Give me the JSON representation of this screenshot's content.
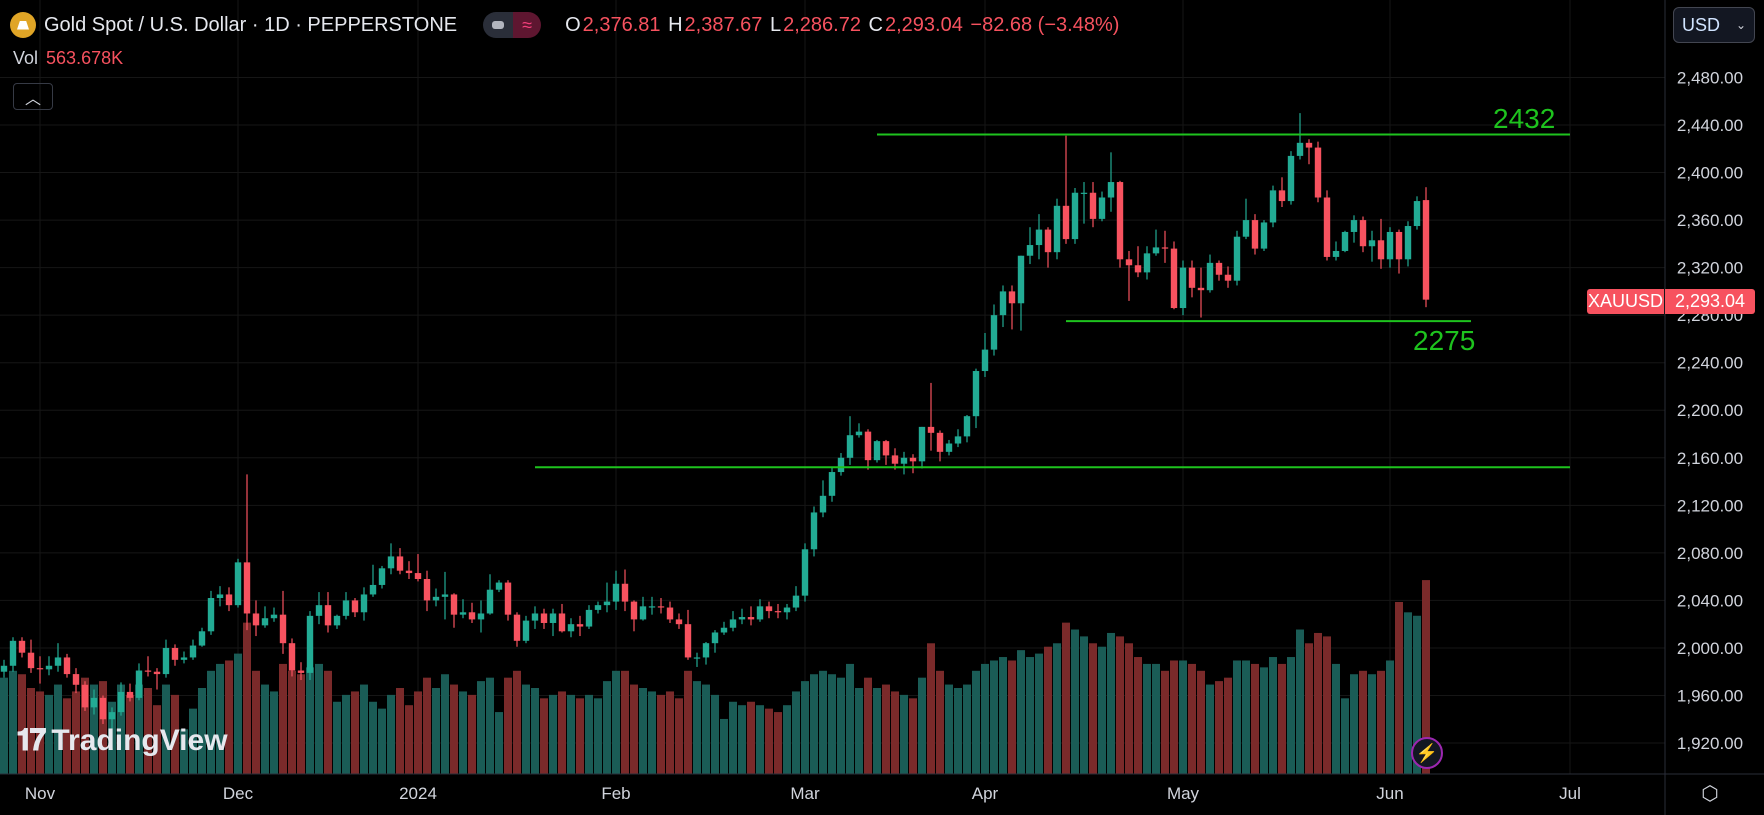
{
  "header": {
    "title": "Gold Spot / U.S. Dollar · 1D · PEPPERSTONE",
    "o_label": "O",
    "open": "2,376.81",
    "h_label": "H",
    "high": "2,387.67",
    "l_label": "L",
    "low": "2,286.72",
    "c_label": "C",
    "close": "2,293.04",
    "change": "−82.68 (−3.48%)",
    "vol_label": "Vol",
    "vol_value": "563.678K",
    "collapse_icon": "chevron-up-icon"
  },
  "currency": {
    "label": "USD"
  },
  "last_price": {
    "symbol": "XAUUSD",
    "price": "2,293.04"
  },
  "branding": {
    "name": "TradingView",
    "mark": "17"
  },
  "colors": {
    "up": "#22ab94",
    "down": "#f7525f",
    "vol_up": "#1a5c56",
    "vol_down": "#7a2a2a",
    "level": "#1ec31e",
    "background": "#000000"
  },
  "chart_data": {
    "type": "candlestick",
    "symbol": "XAUUSD",
    "interval": "1D",
    "ylim": [
      1900,
      2500
    ],
    "y_ticks": [
      "2,480.00",
      "2,440.00",
      "2,400.00",
      "2,360.00",
      "2,320.00",
      "2,280.00",
      "2,240.00",
      "2,200.00",
      "2,160.00",
      "2,120.00",
      "2,080.00",
      "2,040.00",
      "2,000.00",
      "1,960.00",
      "1,920.00"
    ],
    "x_ticks": [
      {
        "label": "Nov",
        "date": "2023-11-01"
      },
      {
        "label": "Dec",
        "date": "2023-12-01"
      },
      {
        "label": "2024",
        "date": "2024-01-02"
      },
      {
        "label": "Feb",
        "date": "2024-02-01"
      },
      {
        "label": "Mar",
        "date": "2024-03-01"
      },
      {
        "label": "Apr",
        "date": "2024-04-01"
      },
      {
        "label": "May",
        "date": "2024-05-01"
      },
      {
        "label": "Jun",
        "date": "2024-06-03"
      },
      {
        "label": "Jul",
        "date": "2024-07-01"
      }
    ],
    "grid": true,
    "horizontal_levels": [
      {
        "price": 2432,
        "label": "2432",
        "from": "2024-03-13",
        "to": "2024-07-01"
      },
      {
        "price": 2275,
        "label": "2275",
        "from": "2024-04-12",
        "to": "2024-06-14"
      },
      {
        "price": 2152,
        "label": "",
        "from": "2024-01-19",
        "to": "2024-07-01"
      }
    ],
    "columns": [
      "open",
      "high",
      "low",
      "close",
      "volume_k"
    ],
    "dates": [
      "2023-10-26",
      "2023-10-27",
      "2023-10-30",
      "2023-10-31",
      "2023-11-01",
      "2023-11-02",
      "2023-11-03",
      "2023-11-06",
      "2023-11-07",
      "2023-11-08",
      "2023-11-09",
      "2023-11-10",
      "2023-11-13",
      "2023-11-14",
      "2023-11-15",
      "2023-11-16",
      "2023-11-17",
      "2023-11-20",
      "2023-11-21",
      "2023-11-22",
      "2023-11-23",
      "2023-11-24",
      "2023-11-27",
      "2023-11-28",
      "2023-11-29",
      "2023-11-30",
      "2023-12-01",
      "2023-12-04",
      "2023-12-05",
      "2023-12-06",
      "2023-12-07",
      "2023-12-08",
      "2023-12-11",
      "2023-12-12",
      "2023-12-13",
      "2023-12-14",
      "2023-12-15",
      "2023-12-18",
      "2023-12-19",
      "2023-12-20",
      "2023-12-21",
      "2023-12-22",
      "2023-12-26",
      "2023-12-27",
      "2023-12-28",
      "2023-12-29",
      "2024-01-02",
      "2024-01-03",
      "2024-01-04",
      "2024-01-05",
      "2024-01-08",
      "2024-01-09",
      "2024-01-10",
      "2024-01-11",
      "2024-01-12",
      "2024-01-15",
      "2024-01-16",
      "2024-01-17",
      "2024-01-18",
      "2024-01-19",
      "2024-01-22",
      "2024-01-23",
      "2024-01-24",
      "2024-01-25",
      "2024-01-26",
      "2024-01-29",
      "2024-01-30",
      "2024-01-31",
      "2024-02-01",
      "2024-02-02",
      "2024-02-05",
      "2024-02-06",
      "2024-02-07",
      "2024-02-08",
      "2024-02-09",
      "2024-02-12",
      "2024-02-13",
      "2024-02-14",
      "2024-02-15",
      "2024-02-16",
      "2024-02-19",
      "2024-02-20",
      "2024-02-21",
      "2024-02-22",
      "2024-02-23",
      "2024-02-26",
      "2024-02-27",
      "2024-02-28",
      "2024-02-29",
      "2024-03-01",
      "2024-03-04",
      "2024-03-05",
      "2024-03-06",
      "2024-03-07",
      "2024-03-08",
      "2024-03-11",
      "2024-03-12",
      "2024-03-13",
      "2024-03-14",
      "2024-03-15",
      "2024-03-18",
      "2024-03-19",
      "2024-03-20",
      "2024-03-21",
      "2024-03-22",
      "2024-03-25",
      "2024-03-26",
      "2024-03-27",
      "2024-03-28",
      "2024-04-01",
      "2024-04-02",
      "2024-04-03",
      "2024-04-04",
      "2024-04-05",
      "2024-04-08",
      "2024-04-09",
      "2024-04-10",
      "2024-04-11",
      "2024-04-12",
      "2024-04-15",
      "2024-04-16",
      "2024-04-17",
      "2024-04-18",
      "2024-04-19",
      "2024-04-22",
      "2024-04-23",
      "2024-04-24",
      "2024-04-25",
      "2024-04-26",
      "2024-04-29",
      "2024-04-30",
      "2024-05-01",
      "2024-05-02",
      "2024-05-03",
      "2024-05-06",
      "2024-05-07",
      "2024-05-08",
      "2024-05-09",
      "2024-05-10",
      "2024-05-13",
      "2024-05-14",
      "2024-05-15",
      "2024-05-16",
      "2024-05-17",
      "2024-05-20",
      "2024-05-21",
      "2024-05-22",
      "2024-05-23",
      "2024-05-24",
      "2024-05-27",
      "2024-05-28",
      "2024-05-29",
      "2024-05-30",
      "2024-05-31",
      "2024-06-03",
      "2024-06-04",
      "2024-06-05",
      "2024-06-06",
      "2024-06-07"
    ],
    "bars": [
      [
        1980,
        1990,
        1975,
        1985,
        280
      ],
      [
        1985,
        2009,
        1980,
        2006,
        300
      ],
      [
        2006,
        2009,
        1992,
        1996,
        290
      ],
      [
        1996,
        2007,
        1979,
        1983,
        250
      ],
      [
        1983,
        1993,
        1970,
        1982,
        240
      ],
      [
        1982,
        1993,
        1977,
        1985,
        230
      ],
      [
        1985,
        2004,
        1980,
        1992,
        260
      ],
      [
        1992,
        1995,
        1975,
        1978,
        220
      ],
      [
        1978,
        1983,
        1962,
        1969,
        240
      ],
      [
        1969,
        1972,
        1947,
        1950,
        280
      ],
      [
        1950,
        1965,
        1944,
        1958,
        260
      ],
      [
        1958,
        1960,
        1936,
        1940,
        270
      ],
      [
        1940,
        1950,
        1932,
        1946,
        210
      ],
      [
        1946,
        1971,
        1943,
        1963,
        260
      ],
      [
        1963,
        1970,
        1955,
        1958,
        230
      ],
      [
        1958,
        1987,
        1956,
        1981,
        260
      ],
      [
        1981,
        1993,
        1976,
        1980,
        250
      ],
      [
        1980,
        1983,
        1965,
        1978,
        200
      ],
      [
        1978,
        2007,
        1975,
        2000,
        260
      ],
      [
        2000,
        2003,
        1985,
        1990,
        230
      ],
      [
        1990,
        1997,
        1987,
        1992,
        130
      ],
      [
        1992,
        2007,
        1990,
        2002,
        190
      ],
      [
        2002,
        2017,
        2001,
        2014,
        250
      ],
      [
        2014,
        2048,
        2011,
        2042,
        300
      ],
      [
        2042,
        2052,
        2035,
        2045,
        320
      ],
      [
        2045,
        2051,
        2031,
        2036,
        330
      ],
      [
        2036,
        2075,
        2034,
        2072,
        350
      ],
      [
        2072,
        2146,
        2015,
        2029,
        440
      ],
      [
        2029,
        2040,
        2010,
        2019,
        300
      ],
      [
        2019,
        2035,
        2017,
        2025,
        260
      ],
      [
        2025,
        2034,
        2022,
        2028,
        240
      ],
      [
        2028,
        2048,
        1995,
        2004,
        320
      ],
      [
        2004,
        2008,
        1976,
        1981,
        300
      ],
      [
        1981,
        1988,
        1973,
        1979,
        290
      ],
      [
        1979,
        2031,
        1973,
        2027,
        310
      ],
      [
        2027,
        2047,
        2020,
        2036,
        320
      ],
      [
        2036,
        2047,
        2013,
        2019,
        300
      ],
      [
        2019,
        2028,
        2016,
        2027,
        210
      ],
      [
        2027,
        2047,
        2024,
        2040,
        230
      ],
      [
        2040,
        2042,
        2026,
        2030,
        240
      ],
      [
        2030,
        2051,
        2023,
        2045,
        260
      ],
      [
        2045,
        2070,
        2043,
        2053,
        210
      ],
      [
        2053,
        2069,
        2050,
        2067,
        190
      ],
      [
        2067,
        2088,
        2062,
        2077,
        230
      ],
      [
        2077,
        2084,
        2062,
        2065,
        250
      ],
      [
        2065,
        2073,
        2058,
        2063,
        200
      ],
      [
        2063,
        2079,
        2056,
        2058,
        240
      ],
      [
        2058,
        2065,
        2031,
        2040,
        280
      ],
      [
        2040,
        2050,
        2035,
        2043,
        250
      ],
      [
        2043,
        2064,
        2024,
        2045,
        290
      ],
      [
        2045,
        2046,
        2017,
        2028,
        260
      ],
      [
        2028,
        2041,
        2025,
        2030,
        240
      ],
      [
        2030,
        2038,
        2021,
        2024,
        230
      ],
      [
        2024,
        2040,
        2013,
        2029,
        270
      ],
      [
        2029,
        2062,
        2028,
        2049,
        280
      ],
      [
        2049,
        2057,
        2047,
        2055,
        180
      ],
      [
        2055,
        2057,
        2023,
        2028,
        280
      ],
      [
        2028,
        2030,
        2001,
        2006,
        300
      ],
      [
        2006,
        2027,
        2004,
        2023,
        260
      ],
      [
        2023,
        2035,
        2016,
        2029,
        250
      ],
      [
        2029,
        2033,
        2016,
        2021,
        220
      ],
      [
        2021,
        2033,
        2010,
        2029,
        230
      ],
      [
        2029,
        2037,
        2013,
        2014,
        240
      ],
      [
        2014,
        2025,
        2009,
        2020,
        230
      ],
      [
        2020,
        2027,
        2010,
        2018,
        220
      ],
      [
        2018,
        2036,
        2016,
        2032,
        230
      ],
      [
        2032,
        2039,
        2029,
        2036,
        220
      ],
      [
        2036,
        2055,
        2030,
        2039,
        270
      ],
      [
        2039,
        2065,
        2032,
        2054,
        300
      ],
      [
        2054,
        2066,
        2031,
        2039,
        300
      ],
      [
        2039,
        2040,
        2014,
        2024,
        260
      ],
      [
        2024,
        2043,
        2023,
        2035,
        250
      ],
      [
        2035,
        2043,
        2028,
        2035,
        240
      ],
      [
        2035,
        2042,
        2029,
        2034,
        230
      ],
      [
        2034,
        2039,
        2021,
        2024,
        240
      ],
      [
        2024,
        2029,
        2016,
        2020,
        220
      ],
      [
        2020,
        2032,
        1990,
        1992,
        300
      ],
      [
        1992,
        1996,
        1984,
        1992,
        270
      ],
      [
        1992,
        2005,
        1986,
        2004,
        260
      ],
      [
        2004,
        2015,
        1996,
        2013,
        230
      ],
      [
        2013,
        2022,
        2011,
        2017,
        160
      ],
      [
        2017,
        2031,
        2014,
        2024,
        210
      ],
      [
        2024,
        2033,
        2020,
        2026,
        200
      ],
      [
        2026,
        2035,
        2019,
        2024,
        210
      ],
      [
        2024,
        2041,
        2022,
        2035,
        200
      ],
      [
        2035,
        2039,
        2025,
        2031,
        190
      ],
      [
        2031,
        2037,
        2025,
        2030,
        180
      ],
      [
        2030,
        2037,
        2024,
        2034,
        200
      ],
      [
        2034,
        2052,
        2031,
        2044,
        240
      ],
      [
        2044,
        2088,
        2039,
        2083,
        270
      ],
      [
        2083,
        2119,
        2077,
        2114,
        290
      ],
      [
        2114,
        2141,
        2110,
        2128,
        300
      ],
      [
        2128,
        2152,
        2123,
        2148,
        290
      ],
      [
        2148,
        2164,
        2145,
        2160,
        280
      ],
      [
        2160,
        2195,
        2154,
        2179,
        320
      ],
      [
        2179,
        2189,
        2177,
        2182,
        250
      ],
      [
        2182,
        2184,
        2150,
        2158,
        280
      ],
      [
        2158,
        2175,
        2156,
        2174,
        250
      ],
      [
        2174,
        2175,
        2154,
        2162,
        260
      ],
      [
        2162,
        2168,
        2150,
        2155,
        240
      ],
      [
        2155,
        2165,
        2146,
        2160,
        230
      ],
      [
        2160,
        2163,
        2147,
        2157,
        220
      ],
      [
        2157,
        2186,
        2151,
        2186,
        280
      ],
      [
        2186,
        2223,
        2166,
        2181,
        380
      ],
      [
        2181,
        2183,
        2157,
        2165,
        300
      ],
      [
        2165,
        2175,
        2162,
        2172,
        260
      ],
      [
        2172,
        2184,
        2169,
        2178,
        250
      ],
      [
        2178,
        2196,
        2173,
        2195,
        260
      ],
      [
        2195,
        2235,
        2185,
        2233,
        300
      ],
      [
        2233,
        2265,
        2228,
        2251,
        320
      ],
      [
        2251,
        2289,
        2246,
        2280,
        330
      ],
      [
        2280,
        2305,
        2270,
        2300,
        340
      ],
      [
        2300,
        2305,
        2268,
        2290,
        330
      ],
      [
        2290,
        2330,
        2267,
        2330,
        360
      ],
      [
        2330,
        2354,
        2323,
        2339,
        340
      ],
      [
        2339,
        2365,
        2327,
        2352,
        350
      ],
      [
        2352,
        2354,
        2320,
        2333,
        370
      ],
      [
        2333,
        2378,
        2327,
        2372,
        380
      ],
      [
        2372,
        2431,
        2340,
        2344,
        440
      ],
      [
        2344,
        2387,
        2340,
        2383,
        420
      ],
      [
        2383,
        2392,
        2357,
        2383,
        400
      ],
      [
        2383,
        2392,
        2354,
        2361,
        380
      ],
      [
        2361,
        2384,
        2359,
        2379,
        370
      ],
      [
        2379,
        2417,
        2367,
        2392,
        410
      ],
      [
        2392,
        2393,
        2320,
        2327,
        400
      ],
      [
        2327,
        2334,
        2292,
        2322,
        380
      ],
      [
        2322,
        2338,
        2312,
        2316,
        340
      ],
      [
        2316,
        2338,
        2310,
        2332,
        320
      ],
      [
        2332,
        2352,
        2330,
        2337,
        320
      ],
      [
        2337,
        2351,
        2324,
        2336,
        300
      ],
      [
        2336,
        2342,
        2285,
        2286,
        330
      ],
      [
        2286,
        2326,
        2280,
        2320,
        330
      ],
      [
        2320,
        2326,
        2295,
        2303,
        320
      ],
      [
        2303,
        2320,
        2278,
        2301,
        300
      ],
      [
        2301,
        2331,
        2299,
        2324,
        260
      ],
      [
        2324,
        2326,
        2309,
        2314,
        270
      ],
      [
        2314,
        2321,
        2303,
        2309,
        280
      ],
      [
        2309,
        2351,
        2305,
        2346,
        330
      ],
      [
        2346,
        2378,
        2344,
        2360,
        330
      ],
      [
        2360,
        2365,
        2331,
        2336,
        320
      ],
      [
        2336,
        2360,
        2334,
        2358,
        310
      ],
      [
        2358,
        2389,
        2354,
        2385,
        340
      ],
      [
        2385,
        2396,
        2371,
        2376,
        320
      ],
      [
        2376,
        2418,
        2373,
        2414,
        340
      ],
      [
        2414,
        2450,
        2411,
        2425,
        420
      ],
      [
        2425,
        2428,
        2407,
        2421,
        380
      ],
      [
        2421,
        2426,
        2375,
        2379,
        410
      ],
      [
        2379,
        2385,
        2326,
        2329,
        400
      ],
      [
        2329,
        2342,
        2326,
        2334,
        320
      ],
      [
        2334,
        2351,
        2333,
        2350,
        220
      ],
      [
        2350,
        2364,
        2341,
        2360,
        290
      ],
      [
        2360,
        2363,
        2333,
        2338,
        300
      ],
      [
        2338,
        2351,
        2325,
        2343,
        290
      ],
      [
        2343,
        2361,
        2319,
        2327,
        300
      ],
      [
        2327,
        2354,
        2320,
        2350,
        330
      ],
      [
        2350,
        2352,
        2315,
        2327,
        500
      ],
      [
        2327,
        2359,
        2321,
        2355,
        470
      ],
      [
        2355,
        2380,
        2352,
        2376,
        460
      ],
      [
        2376.81,
        2387.67,
        2286.72,
        2293.04,
        563.678
      ]
    ]
  }
}
